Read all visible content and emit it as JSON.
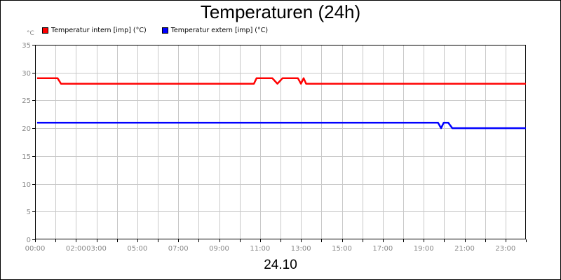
{
  "chart_data": {
    "type": "line",
    "title": "Temperaturen (24h)",
    "xlabel": "24.10",
    "ylabel": "°C",
    "xlim": [
      0,
      24
    ],
    "ylim": [
      0,
      35
    ],
    "y_ticks": [
      0,
      5,
      10,
      15,
      20,
      25,
      30,
      35
    ],
    "x_ticks": [
      {
        "hour": 0,
        "label": "00:00"
      },
      {
        "hour": 2,
        "label": "02:00"
      },
      {
        "hour": 3,
        "label": "03:00"
      },
      {
        "hour": 5,
        "label": "05:00"
      },
      {
        "hour": 7,
        "label": "07:00"
      },
      {
        "hour": 9,
        "label": "09:00"
      },
      {
        "hour": 11,
        "label": "11:00"
      },
      {
        "hour": 13,
        "label": "13:00"
      },
      {
        "hour": 15,
        "label": "15:00"
      },
      {
        "hour": 17,
        "label": "17:00"
      },
      {
        "hour": 19,
        "label": "19:00"
      },
      {
        "hour": 21,
        "label": "21:00"
      },
      {
        "hour": 23,
        "label": "23:00"
      }
    ],
    "grid": true,
    "legend_position": "top-left",
    "series": [
      {
        "name": "Temperatur intern [imp] (°C)",
        "color": "#ff0000",
        "points": [
          [
            0.1,
            29
          ],
          [
            1.1,
            29
          ],
          [
            1.27,
            28
          ],
          [
            10.7,
            28
          ],
          [
            10.83,
            29
          ],
          [
            11.6,
            29
          ],
          [
            11.85,
            28
          ],
          [
            12.1,
            29
          ],
          [
            12.85,
            29
          ],
          [
            13.0,
            28
          ],
          [
            13.13,
            29
          ],
          [
            13.25,
            28
          ],
          [
            24.0,
            28
          ]
        ]
      },
      {
        "name": "Temperatur extern [imp] (°C)",
        "color": "#0000ff",
        "points": [
          [
            0.1,
            21
          ],
          [
            19.7,
            21
          ],
          [
            19.85,
            20
          ],
          [
            19.98,
            21
          ],
          [
            20.2,
            21
          ],
          [
            20.4,
            20
          ],
          [
            24.0,
            20
          ]
        ]
      }
    ]
  }
}
